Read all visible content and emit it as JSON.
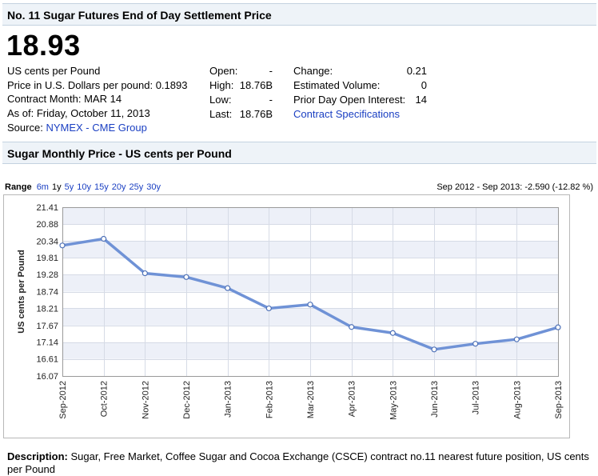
{
  "header": {
    "title": "No. 11 Sugar Futures End of Day Settlement Price"
  },
  "price": "18.93",
  "info": {
    "unit": "US cents per Pound",
    "usd_price": "Price in U.S. Dollars per pound: 0.1893",
    "contract_month": "Contract Month: MAR 14",
    "as_of": "As of: Friday, October 11, 2013",
    "source_label": "Source:",
    "source_link": "NYMEX - CME Group"
  },
  "stats": {
    "open_label": "Open:",
    "open_value": "-",
    "high_label": "High:",
    "high_value": "18.76B",
    "low_label": "Low:",
    "low_value": "-",
    "last_label": "Last:",
    "last_value": "18.76B",
    "change_label": "Change:",
    "change_value": "0.21",
    "volume_label": "Estimated Volume:",
    "volume_value": "0",
    "oi_label": "Prior Day Open Interest:",
    "oi_value": "14",
    "spec_link": "Contract Specifications"
  },
  "section2": {
    "title": "Sugar Monthly Price - US cents per Pound"
  },
  "range": {
    "label": "Range",
    "options": [
      "6m",
      "1y",
      "5y",
      "10y",
      "15y",
      "20y",
      "25y",
      "30y"
    ],
    "selected": "1y"
  },
  "summary": "Sep 2012 - Sep 2013: -2.590 (-12.82 %)",
  "colors": {
    "line": "#6f92d6",
    "band": "#edf0f8",
    "link": "#1a3fc2"
  },
  "chart_data": {
    "type": "line",
    "categories": [
      "Sep-2012",
      "Oct-2012",
      "Nov-2012",
      "Dec-2012",
      "Jan-2013",
      "Feb-2013",
      "Mar-2013",
      "Apr-2013",
      "May-2013",
      "Jun-2013",
      "Jul-2013",
      "Aug-2013",
      "Sep-2013"
    ],
    "series": [
      {
        "values": [
          20.2,
          20.41,
          19.32,
          19.2,
          18.85,
          18.21,
          18.33,
          17.62,
          17.43,
          16.91,
          17.09,
          17.23,
          17.61
        ]
      }
    ],
    "yticks": [
      "16.07",
      "16.61",
      "17.14",
      "17.67",
      "18.21",
      "18.74",
      "19.28",
      "19.81",
      "20.34",
      "20.88",
      "21.41"
    ],
    "ylim": [
      16.07,
      21.41
    ],
    "ylabel": "US cents per Pound",
    "grid": true
  },
  "description": {
    "label": "Description:",
    "text": "Sugar, Free Market, Coffee Sugar and Cocoa Exchange (CSCE) contract no.11 nearest future position, US cents per Pound"
  }
}
